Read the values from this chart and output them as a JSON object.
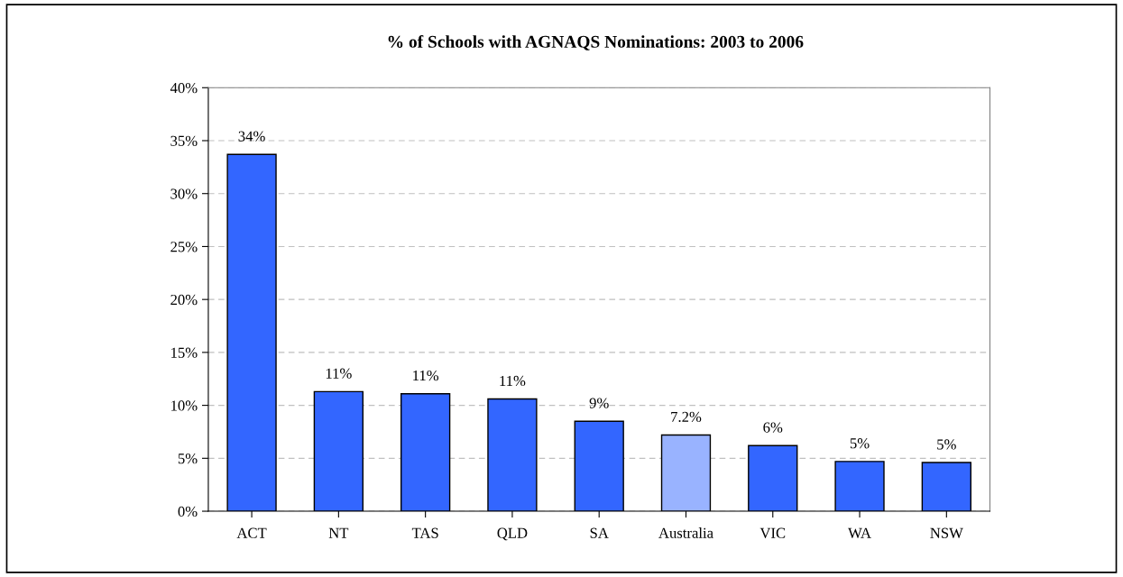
{
  "chart_data": {
    "type": "bar",
    "title": "% of Schools with AGNAQS Nominations: 2003 to 2006",
    "categories": [
      "ACT",
      "NT",
      "TAS",
      "QLD",
      "SA",
      "Australia",
      "VIC",
      "WA",
      "NSW"
    ],
    "values": [
      33.7,
      11.3,
      11.1,
      10.6,
      8.5,
      7.2,
      6.2,
      4.7,
      4.6
    ],
    "colors": [
      "#3366ff",
      "#3366ff",
      "#3366ff",
      "#3366ff",
      "#3366ff",
      "#99b3ff",
      "#3366ff",
      "#3366ff",
      "#3366ff"
    ],
    "value_labels": [
      "34%",
      "11%",
      "11%",
      "11%",
      "9%",
      "7.2%",
      "6%",
      "5%",
      "5%"
    ],
    "ylim": [
      0,
      40
    ],
    "yticks": [
      {
        "value": 0,
        "label": "0%"
      },
      {
        "value": 5,
        "label": "5%"
      },
      {
        "value": 10,
        "label": "10%"
      },
      {
        "value": 15,
        "label": "15%"
      },
      {
        "value": 20,
        "label": "20%"
      },
      {
        "value": 25,
        "label": "25%"
      },
      {
        "value": 30,
        "label": "30%"
      },
      {
        "value": 35,
        "label": "35%"
      },
      {
        "value": 40,
        "label": "40%"
      }
    ],
    "grid": "y",
    "legend": false
  }
}
